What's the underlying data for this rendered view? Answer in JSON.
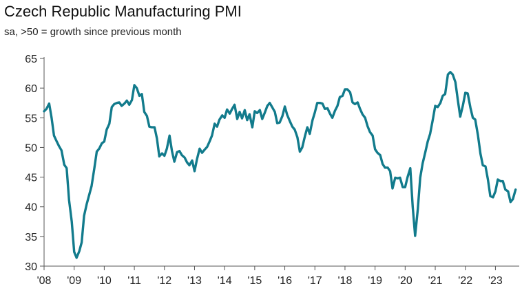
{
  "chart_data": {
    "type": "line",
    "title": "Czech Republic Manufacturing PMI",
    "subtitle": "sa, >50 = growth since previous month",
    "xlabel": "",
    "ylabel": "",
    "ylim": [
      30,
      65
    ],
    "yticks": [
      30,
      35,
      40,
      45,
      50,
      55,
      60,
      65
    ],
    "xlim": [
      2008.0,
      2023.7
    ],
    "xticks": [
      {
        "value": 2008,
        "label": "'08"
      },
      {
        "value": 2009,
        "label": "'09"
      },
      {
        "value": 2010,
        "label": "'10"
      },
      {
        "value": 2011,
        "label": "'11"
      },
      {
        "value": 2012,
        "label": "'12"
      },
      {
        "value": 2013,
        "label": "'13"
      },
      {
        "value": 2014,
        "label": "'14"
      },
      {
        "value": 2015,
        "label": "'15"
      },
      {
        "value": 2016,
        "label": "'16"
      },
      {
        "value": 2017,
        "label": "'17"
      },
      {
        "value": 2018,
        "label": "'18"
      },
      {
        "value": 2019,
        "label": "'19"
      },
      {
        "value": 2020,
        "label": "'20"
      },
      {
        "value": 2021,
        "label": "'21"
      },
      {
        "value": 2022,
        "label": "'22"
      },
      {
        "value": 2023,
        "label": "'23"
      }
    ],
    "grid": false,
    "line_color": "#127b8c",
    "series": [
      {
        "name": "Czech Republic Manufacturing PMI",
        "x": [
          2008.0,
          2008.08,
          2008.17,
          2008.25,
          2008.33,
          2008.42,
          2008.5,
          2008.58,
          2008.67,
          2008.75,
          2008.83,
          2008.92,
          2009.0,
          2009.08,
          2009.17,
          2009.25,
          2009.33,
          2009.42,
          2009.5,
          2009.58,
          2009.67,
          2009.75,
          2009.83,
          2009.92,
          2010.0,
          2010.08,
          2010.17,
          2010.25,
          2010.33,
          2010.42,
          2010.5,
          2010.58,
          2010.67,
          2010.75,
          2010.83,
          2010.92,
          2011.0,
          2011.08,
          2011.17,
          2011.25,
          2011.33,
          2011.42,
          2011.5,
          2011.58,
          2011.67,
          2011.75,
          2011.83,
          2011.92,
          2012.0,
          2012.08,
          2012.17,
          2012.25,
          2012.33,
          2012.42,
          2012.5,
          2012.58,
          2012.67,
          2012.75,
          2012.83,
          2012.92,
          2013.0,
          2013.08,
          2013.17,
          2013.25,
          2013.33,
          2013.42,
          2013.5,
          2013.58,
          2013.67,
          2013.75,
          2013.83,
          2013.92,
          2014.0,
          2014.08,
          2014.17,
          2014.25,
          2014.33,
          2014.42,
          2014.5,
          2014.58,
          2014.67,
          2014.75,
          2014.83,
          2014.92,
          2015.0,
          2015.08,
          2015.17,
          2015.25,
          2015.33,
          2015.42,
          2015.5,
          2015.58,
          2015.67,
          2015.75,
          2015.83,
          2015.92,
          2016.0,
          2016.08,
          2016.17,
          2016.25,
          2016.33,
          2016.42,
          2016.5,
          2016.58,
          2016.67,
          2016.75,
          2016.83,
          2016.92,
          2017.0,
          2017.08,
          2017.17,
          2017.25,
          2017.33,
          2017.42,
          2017.5,
          2017.58,
          2017.67,
          2017.75,
          2017.83,
          2017.92,
          2018.0,
          2018.08,
          2018.17,
          2018.25,
          2018.33,
          2018.42,
          2018.5,
          2018.58,
          2018.67,
          2018.75,
          2018.83,
          2018.92,
          2019.0,
          2019.08,
          2019.17,
          2019.25,
          2019.33,
          2019.42,
          2019.5,
          2019.58,
          2019.67,
          2019.75,
          2019.83,
          2019.92,
          2020.0,
          2020.08,
          2020.17,
          2020.25,
          2020.33,
          2020.42,
          2020.5,
          2020.58,
          2020.67,
          2020.75,
          2020.83,
          2020.92,
          2021.0,
          2021.08,
          2021.17,
          2021.25,
          2021.33,
          2021.42,
          2021.5,
          2021.58,
          2021.67,
          2021.75,
          2021.83,
          2021.92,
          2022.0,
          2022.08,
          2022.17,
          2022.25,
          2022.33,
          2022.42,
          2022.5,
          2022.58,
          2022.67,
          2022.75,
          2022.83,
          2022.92,
          2023.0,
          2023.08,
          2023.17,
          2023.25,
          2023.33,
          2023.42,
          2023.5,
          2023.58,
          2023.67
        ],
        "values": [
          56.1,
          56.5,
          57.4,
          55.0,
          52.0,
          51.0,
          50.2,
          49.5,
          47.1,
          46.5,
          41.1,
          37.5,
          32.4,
          31.4,
          32.5,
          34.0,
          38.5,
          40.5,
          42.0,
          43.5,
          46.5,
          49.3,
          49.8,
          50.7,
          51.0,
          53.0,
          54.0,
          56.8,
          57.3,
          57.5,
          57.6,
          57.0,
          57.4,
          57.9,
          57.2,
          58.0,
          60.5,
          60.0,
          58.7,
          59.0,
          56.0,
          55.3,
          53.5,
          53.4,
          53.4,
          51.5,
          48.5,
          49.0,
          48.6,
          49.8,
          52.0,
          49.4,
          47.6,
          49.2,
          49.4,
          48.7,
          48.3,
          47.5,
          47.0,
          47.8,
          46.0,
          48.0,
          49.8,
          49.1,
          49.6,
          50.1,
          51.0,
          52.0,
          54.0,
          53.5,
          54.7,
          55.4,
          55.0,
          56.4,
          55.7,
          56.5,
          57.2,
          54.8,
          56.0,
          54.9,
          56.3,
          54.6,
          55.6,
          53.4,
          56.1,
          55.8,
          56.3,
          54.8,
          55.8,
          57.0,
          57.5,
          56.8,
          56.0,
          54.1,
          54.2,
          55.3,
          56.9,
          55.5,
          54.4,
          53.5,
          53.0,
          51.7,
          49.3,
          50.0,
          51.9,
          53.4,
          52.3,
          54.6,
          55.9,
          57.5,
          57.5,
          57.4,
          56.5,
          56.6,
          55.7,
          55.0,
          56.2,
          57.0,
          58.5,
          58.7,
          59.8,
          59.8,
          59.3,
          57.6,
          57.3,
          57.6,
          56.5,
          55.6,
          55.0,
          53.6,
          52.6,
          52.0,
          49.7,
          49.1,
          48.7,
          47.2,
          46.6,
          46.6,
          46.0,
          43.1,
          44.9,
          44.8,
          44.9,
          43.3,
          43.3,
          45.0,
          46.5,
          40.0,
          35.1,
          39.6,
          44.9,
          47.3,
          49.2,
          51.0,
          52.3,
          54.7,
          57.0,
          56.8,
          57.5,
          58.7,
          59.0,
          62.3,
          62.7,
          62.3,
          61.0,
          58.0,
          55.2,
          57.1,
          59.2,
          59.1,
          56.7,
          55.0,
          54.7,
          52.0,
          49.0,
          47.0,
          46.8,
          44.6,
          41.8,
          41.6,
          42.6,
          44.6,
          44.3,
          44.3,
          42.9,
          42.6,
          40.8,
          41.3,
          42.9
        ]
      }
    ]
  }
}
